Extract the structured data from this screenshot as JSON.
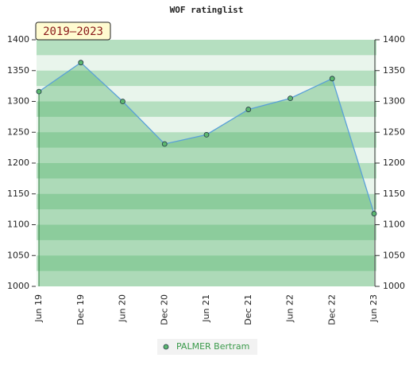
{
  "chart_data": {
    "type": "line",
    "title": "WOF ratinglist",
    "annotation": "2019–2023",
    "categories": [
      "Jun 19",
      "Dec 19",
      "Jun 20",
      "Dec 20",
      "Jun 21",
      "Dec 21",
      "Jun 22",
      "Dec 22",
      "Jun 23"
    ],
    "series": [
      {
        "name": "PALMER Bertram",
        "color": "#5aa0d8",
        "marker_color": "#5cb870",
        "values": [
          1316,
          1363,
          1300,
          1231,
          1246,
          1287,
          1305,
          1337,
          1118
        ]
      }
    ],
    "ylim": [
      1000,
      1400
    ],
    "yticks": [
      1000,
      1050,
      1100,
      1150,
      1200,
      1250,
      1300,
      1350,
      1400
    ],
    "y2lim": [
      1000,
      1400
    ],
    "y2ticks": [
      1000,
      1050,
      1100,
      1150,
      1200,
      1250,
      1300,
      1350,
      1400
    ]
  }
}
